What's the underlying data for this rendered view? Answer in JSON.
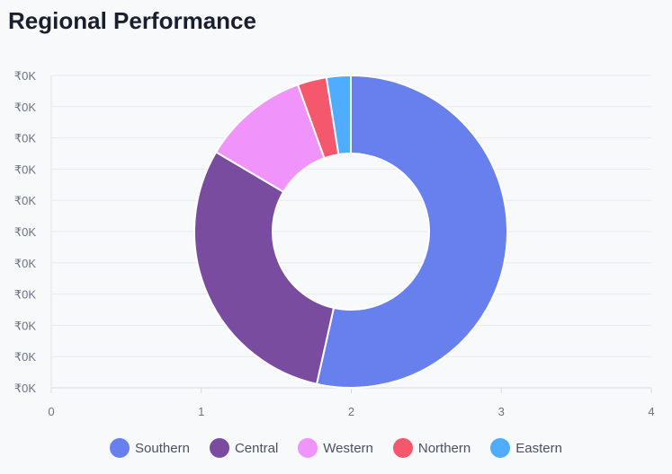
{
  "title": "Regional Performance",
  "chart_data": {
    "type": "pie",
    "donut": true,
    "title": "Regional Performance",
    "categories": [
      "Southern",
      "Central",
      "Western",
      "Northern",
      "Eastern"
    ],
    "values": [
      53.5,
      30,
      11,
      3,
      2.5
    ],
    "colors": [
      "#6780ed",
      "#7a4ca0",
      "#f093fb",
      "#f5576c",
      "#4facfe"
    ],
    "background_axes": {
      "y_ticks": [
        "₹0K",
        "₹0K",
        "₹0K",
        "₹0K",
        "₹0K",
        "₹0K",
        "₹0K",
        "₹0K",
        "₹0K",
        "₹0K",
        "₹0K"
      ],
      "x_ticks": [
        "0",
        "1",
        "2",
        "3",
        "4"
      ],
      "xlim": [
        0,
        4
      ],
      "grid": true
    },
    "legend_position": "bottom"
  }
}
